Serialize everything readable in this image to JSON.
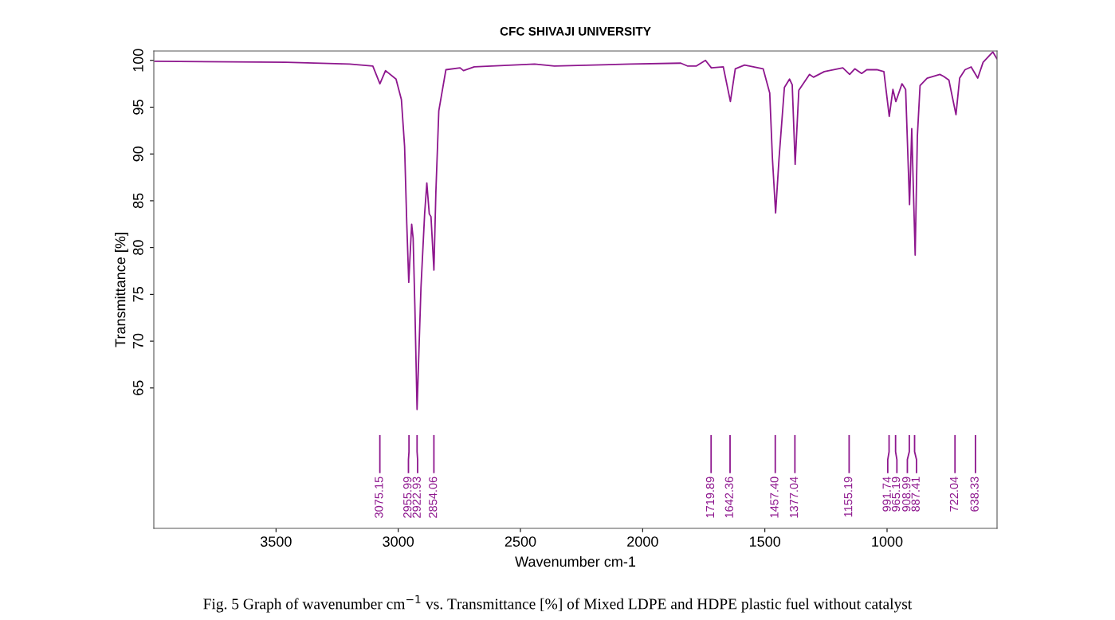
{
  "chart_data": {
    "type": "line",
    "title": "CFC SHIVAJI UNIVERSITY",
    "xlabel": "Wavenumber cm-1",
    "ylabel": "Transmittance [%]",
    "xlim": [
      4000,
      550
    ],
    "xticks": [
      3500,
      3000,
      2500,
      2000,
      1500,
      1000
    ],
    "ylim": [
      50,
      101
    ],
    "yticks": [
      65,
      70,
      75,
      80,
      85,
      90,
      95,
      100
    ],
    "grid": false,
    "legend": false,
    "marker": "none",
    "line_style": "solid",
    "series": [
      {
        "color": "#8e178e",
        "x": [
          3996,
          3460,
          3199,
          3104,
          3075,
          3052,
          3009,
          2987,
          2974,
          2965,
          2957,
          2945,
          2939,
          2932,
          2923,
          2907,
          2892,
          2883,
          2873,
          2866,
          2854,
          2846,
          2834,
          2805,
          2747,
          2733,
          2689,
          2442,
          2361,
          2051,
          1844,
          1817,
          1780,
          1743,
          1719,
          1670,
          1641,
          1621,
          1583,
          1507,
          1480,
          1469,
          1456,
          1442,
          1420,
          1399,
          1388,
          1376,
          1361,
          1317,
          1301,
          1257,
          1181,
          1153,
          1132,
          1104,
          1083,
          1042,
          1013,
          991,
          976,
          964,
          939,
          924,
          908,
          899,
          885,
          876,
          865,
          836,
          784,
          769,
          747,
          733,
          718,
          703,
          681,
          656,
          629,
          607,
          567,
          551
        ],
        "values": [
          99.9,
          99.8,
          99.6,
          99.4,
          97.5,
          98.9,
          98.0,
          95.8,
          90.8,
          82.5,
          76.3,
          82.5,
          81.0,
          73.8,
          62.7,
          75.7,
          83.6,
          86.9,
          83.6,
          83.3,
          77.6,
          85.9,
          94.6,
          99.0,
          99.2,
          98.9,
          99.3,
          99.6,
          99.4,
          99.6,
          99.7,
          99.4,
          99.4,
          100.0,
          99.2,
          99.3,
          95.6,
          99.1,
          99.5,
          99.1,
          96.5,
          89.5,
          83.7,
          89.5,
          97.1,
          98.0,
          97.4,
          88.9,
          96.8,
          98.5,
          98.2,
          98.8,
          99.2,
          98.5,
          99.1,
          98.6,
          99.0,
          99.0,
          98.8,
          94.0,
          96.9,
          95.6,
          97.5,
          96.9,
          84.6,
          92.7,
          79.2,
          91.9,
          97.3,
          98.1,
          98.5,
          98.3,
          97.9,
          96.1,
          94.2,
          98.1,
          99.0,
          99.3,
          98.1,
          99.8,
          100.9,
          100.2
        ]
      }
    ],
    "ref_lines": [
      {
        "axis": "x",
        "value": 3075.15,
        "label": "3075.15"
      },
      {
        "axis": "x",
        "value": 2955.99,
        "label": "2955.99"
      },
      {
        "axis": "x",
        "value": 2922.93,
        "label": "2922.93"
      },
      {
        "axis": "x",
        "value": 2854.06,
        "label": "2854.06"
      },
      {
        "axis": "x",
        "value": 1719.89,
        "label": "1719.89"
      },
      {
        "axis": "x",
        "value": 1642.36,
        "label": "1642.36"
      },
      {
        "axis": "x",
        "value": 1457.4,
        "label": "1457.40"
      },
      {
        "axis": "x",
        "value": 1377.04,
        "label": "1377.04"
      },
      {
        "axis": "x",
        "value": 1155.19,
        "label": "1155.19"
      },
      {
        "axis": "x",
        "value": 991.74,
        "label": "991.74"
      },
      {
        "axis": "x",
        "value": 965.19,
        "label": "965.19"
      },
      {
        "axis": "x",
        "value": 908.99,
        "label": "908.99"
      },
      {
        "axis": "x",
        "value": 887.41,
        "label": "887.41"
      },
      {
        "axis": "x",
        "value": 722.04,
        "label": "722.04"
      },
      {
        "axis": "x",
        "value": 638.33,
        "label": "638.33"
      }
    ],
    "annotations": [
      "Fig. 5 Graph of wavenumber cm$^{−1}$ vs. Transmittance [%] of Mixed LDPE and HDPE plastic fuel without catalyst"
    ]
  }
}
